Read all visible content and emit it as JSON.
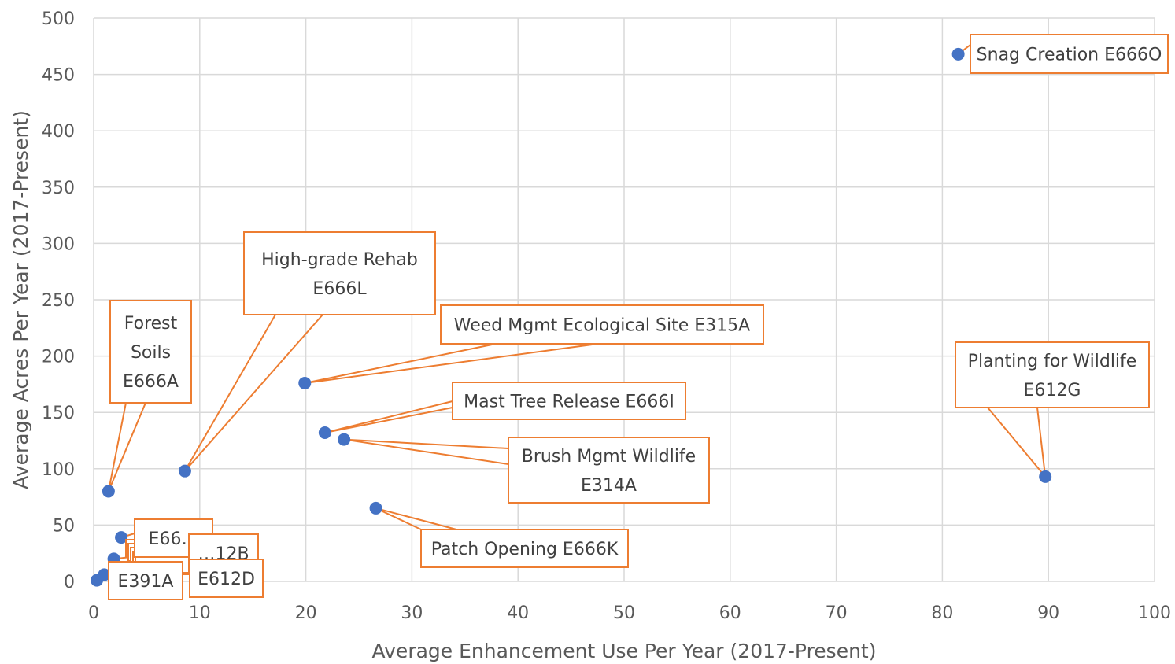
{
  "chart_data": {
    "type": "scatter",
    "title": "",
    "xlabel": "Average Enhancement Use Per Year (2017-Present)",
    "ylabel": "Average Acres Per Year (2017-Present)",
    "xlim": [
      0,
      100
    ],
    "ylim": [
      0,
      500
    ],
    "xticks": [
      0,
      10,
      20,
      30,
      40,
      50,
      60,
      70,
      80,
      90,
      100
    ],
    "yticks": [
      0,
      50,
      100,
      150,
      200,
      250,
      300,
      350,
      400,
      450,
      500
    ],
    "grid": true,
    "legend": "none",
    "colors": {
      "marker": "#4472C4",
      "callout": "#ED7D31",
      "gridline": "#d9d9d9",
      "text": "#595959"
    },
    "points": [
      {
        "x": 81.5,
        "y": 468,
        "label": "Snag Creation E666O"
      },
      {
        "x": 89.7,
        "y": 93,
        "label": "Planting for Wildlife E612G"
      },
      {
        "x": 19.9,
        "y": 176,
        "label": "Weed Mgmt Ecological Site E315A"
      },
      {
        "x": 21.8,
        "y": 132,
        "label": "Mast Tree Release E666I"
      },
      {
        "x": 23.6,
        "y": 126,
        "label": "Brush Mgmt Wildlife E314A"
      },
      {
        "x": 26.6,
        "y": 65,
        "label": "Patch Opening E666K"
      },
      {
        "x": 8.6,
        "y": 98,
        "label": "High-grade Rehab E666L"
      },
      {
        "x": 1.4,
        "y": 80,
        "label": "Forest Soils E666A"
      },
      {
        "x": 2.6,
        "y": 39,
        "label": "E66…"
      },
      {
        "x": 1.9,
        "y": 20,
        "label": "…12B"
      },
      {
        "x": 1.0,
        "y": 6,
        "label": "E612D"
      },
      {
        "x": 0.3,
        "y": 1,
        "label": "E391A"
      }
    ]
  }
}
